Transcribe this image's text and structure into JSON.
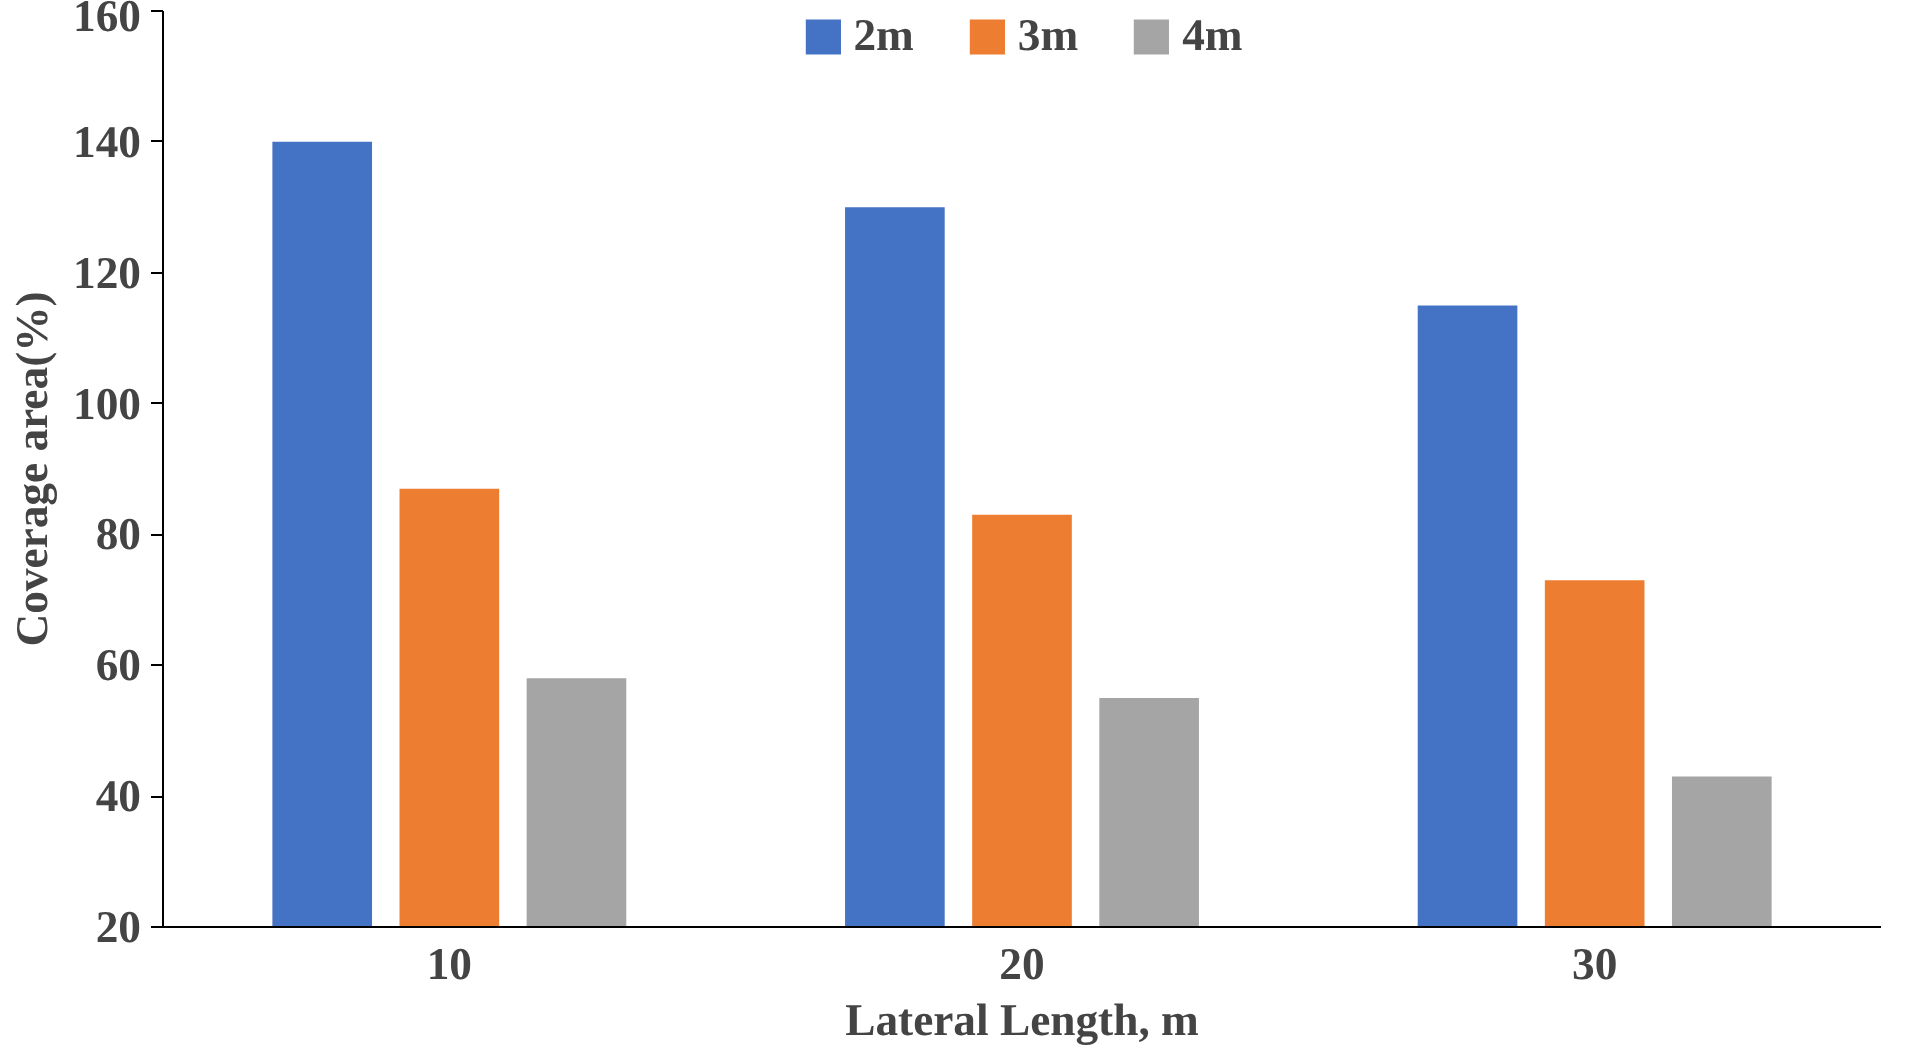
{
  "chart_data": {
    "type": "bar",
    "xlabel": "Lateral Length, m",
    "ylabel": "Coverage area(%)",
    "categories": [
      "10",
      "20",
      "30"
    ],
    "series": [
      {
        "name": "2m",
        "color": "#4472c4",
        "values": [
          140,
          130,
          115
        ]
      },
      {
        "name": "3m",
        "color": "#ed7d31",
        "values": [
          87,
          83,
          73
        ]
      },
      {
        "name": "4m",
        "color": "#a5a5a5",
        "values": [
          58,
          55,
          43
        ]
      }
    ],
    "ylim": [
      20,
      160
    ],
    "yticks": [
      20,
      40,
      60,
      80,
      100,
      120,
      140,
      160
    ],
    "grid": false,
    "legend": "top"
  }
}
